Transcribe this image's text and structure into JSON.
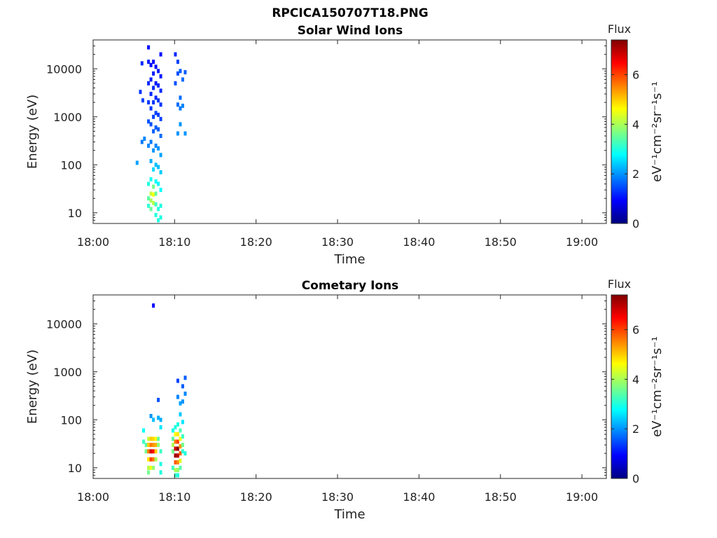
{
  "figure_title": "RPCICA150707T18.PNG",
  "chart_data": [
    {
      "type": "heatmap",
      "title": "Solar Wind Ions",
      "xlabel": "Time",
      "ylabel": "Energy (eV)",
      "y_scale": "log",
      "xlim": [
        "18:00",
        "19:03"
      ],
      "ylim": [
        6,
        40000
      ],
      "xticks": [
        "18:00",
        "18:10",
        "18:20",
        "18:30",
        "18:40",
        "18:50",
        "19:00"
      ],
      "yticks": [
        "10",
        "100",
        "1000",
        "10000"
      ],
      "colorbar": {
        "title": "Flux",
        "label": "eV⁻¹cm⁻²sr⁻¹s⁻¹",
        "range": [
          0,
          7.4
        ],
        "ticks": [
          "0",
          "2",
          "4",
          "6"
        ],
        "colormap": "jet"
      },
      "cells": [
        {
          "t": "18:05.4",
          "e": 110,
          "v": 2.1
        },
        {
          "t": "18:05.8",
          "e": 3300,
          "v": 1.3
        },
        {
          "t": "18:06.1",
          "e": 2200,
          "v": 1.4
        },
        {
          "t": "18:06.0",
          "e": 13000,
          "v": 1.2
        },
        {
          "t": "18:06.0",
          "e": 300,
          "v": 1.8
        },
        {
          "t": "18:06.3",
          "e": 350,
          "v": 1.9
        },
        {
          "t": "18:06.8",
          "e": 28000,
          "v": 1.0
        },
        {
          "t": "18:06.8",
          "e": 14000,
          "v": 1.1
        },
        {
          "t": "18:06.8",
          "e": 5000,
          "v": 1.2
        },
        {
          "t": "18:06.8",
          "e": 2000,
          "v": 1.3
        },
        {
          "t": "18:06.8",
          "e": 800,
          "v": 1.5
        },
        {
          "t": "18:06.8",
          "e": 250,
          "v": 1.9
        },
        {
          "t": "18:06.8",
          "e": 40,
          "v": 3.0
        },
        {
          "t": "18:06.8",
          "e": 20,
          "v": 3.4
        },
        {
          "t": "18:06.8",
          "e": 14,
          "v": 3.1
        },
        {
          "t": "18:07.1",
          "e": 12000,
          "v": 1.0
        },
        {
          "t": "18:07.1",
          "e": 6000,
          "v": 1.1
        },
        {
          "t": "18:07.1",
          "e": 3000,
          "v": 1.2
        },
        {
          "t": "18:07.1",
          "e": 1500,
          "v": 1.3
        },
        {
          "t": "18:07.1",
          "e": 700,
          "v": 1.5
        },
        {
          "t": "18:07.1",
          "e": 300,
          "v": 1.8
        },
        {
          "t": "18:07.1",
          "e": 120,
          "v": 2.2
        },
        {
          "t": "18:07.1",
          "e": 50,
          "v": 2.9
        },
        {
          "t": "18:07.1",
          "e": 25,
          "v": 4.2
        },
        {
          "t": "18:07.1",
          "e": 18,
          "v": 4.0
        },
        {
          "t": "18:07.1",
          "e": 12,
          "v": 3.5
        },
        {
          "t": "18:07.4",
          "e": 14000,
          "v": 1.0
        },
        {
          "t": "18:07.4",
          "e": 8000,
          "v": 1.1
        },
        {
          "t": "18:07.4",
          "e": 4000,
          "v": 1.2
        },
        {
          "t": "18:07.4",
          "e": 2000,
          "v": 1.3
        },
        {
          "t": "18:07.4",
          "e": 1000,
          "v": 1.4
        },
        {
          "t": "18:07.4",
          "e": 500,
          "v": 1.6
        },
        {
          "t": "18:07.4",
          "e": 200,
          "v": 2.0
        },
        {
          "t": "18:07.4",
          "e": 80,
          "v": 2.5
        },
        {
          "t": "18:07.4",
          "e": 35,
          "v": 3.6
        },
        {
          "t": "18:07.4",
          "e": 24,
          "v": 4.6
        },
        {
          "t": "18:07.4",
          "e": 16,
          "v": 4.1
        },
        {
          "t": "18:07.7",
          "e": 11000,
          "v": 1.0
        },
        {
          "t": "18:07.7",
          "e": 5000,
          "v": 1.1
        },
        {
          "t": "18:07.7",
          "e": 2500,
          "v": 1.2
        },
        {
          "t": "18:07.7",
          "e": 1200,
          "v": 1.4
        },
        {
          "t": "18:07.7",
          "e": 600,
          "v": 1.6
        },
        {
          "t": "18:07.7",
          "e": 250,
          "v": 1.9
        },
        {
          "t": "18:07.7",
          "e": 100,
          "v": 2.3
        },
        {
          "t": "18:07.7",
          "e": 45,
          "v": 2.8
        },
        {
          "t": "18:07.7",
          "e": 25,
          "v": 3.5
        },
        {
          "t": "18:07.7",
          "e": 15,
          "v": 3.2
        },
        {
          "t": "18:07.7",
          "e": 9,
          "v": 3.0
        },
        {
          "t": "18:08.0",
          "e": 9000,
          "v": 1.1
        },
        {
          "t": "18:08.0",
          "e": 4500,
          "v": 1.2
        },
        {
          "t": "18:08.0",
          "e": 2200,
          "v": 1.3
        },
        {
          "t": "18:08.0",
          "e": 1100,
          "v": 1.4
        },
        {
          "t": "18:08.0",
          "e": 550,
          "v": 1.6
        },
        {
          "t": "18:08.0",
          "e": 220,
          "v": 2.0
        },
        {
          "t": "18:08.0",
          "e": 90,
          "v": 2.3
        },
        {
          "t": "18:08.0",
          "e": 40,
          "v": 2.7
        },
        {
          "t": "18:08.0",
          "e": 12,
          "v": 3.0
        },
        {
          "t": "18:08.0",
          "e": 7,
          "v": 3.0
        },
        {
          "t": "18:08.3",
          "e": 20000,
          "v": 1.0
        },
        {
          "t": "18:08.3",
          "e": 7000,
          "v": 1.1
        },
        {
          "t": "18:08.3",
          "e": 3500,
          "v": 1.2
        },
        {
          "t": "18:08.3",
          "e": 1800,
          "v": 1.3
        },
        {
          "t": "18:08.3",
          "e": 900,
          "v": 1.4
        },
        {
          "t": "18:08.3",
          "e": 400,
          "v": 1.7
        },
        {
          "t": "18:08.3",
          "e": 160,
          "v": 2.1
        },
        {
          "t": "18:08.3",
          "e": 70,
          "v": 2.4
        },
        {
          "t": "18:08.3",
          "e": 30,
          "v": 2.8
        },
        {
          "t": "18:08.3",
          "e": 14,
          "v": 3.0
        },
        {
          "t": "18:08.3",
          "e": 8,
          "v": 3.0
        },
        {
          "t": "18:10.1",
          "e": 20000,
          "v": 1.2
        },
        {
          "t": "18:10.1",
          "e": 5000,
          "v": 1.5
        },
        {
          "t": "18:10.4",
          "e": 14000,
          "v": 1.4
        },
        {
          "t": "18:10.4",
          "e": 1800,
          "v": 1.7
        },
        {
          "t": "18:10.4",
          "e": 450,
          "v": 2.0
        },
        {
          "t": "18:10.4",
          "e": 8000,
          "v": 1.5
        },
        {
          "t": "18:10.7",
          "e": 9000,
          "v": 1.6
        },
        {
          "t": "18:10.7",
          "e": 1500,
          "v": 1.8
        },
        {
          "t": "18:10.7",
          "e": 700,
          "v": 2.0
        },
        {
          "t": "18:10.7",
          "e": 2500,
          "v": 1.7
        },
        {
          "t": "18:11.0",
          "e": 6000,
          "v": 1.7
        },
        {
          "t": "18:11.0",
          "e": 1700,
          "v": 1.9
        },
        {
          "t": "18:11.3",
          "e": 8500,
          "v": 1.6
        },
        {
          "t": "18:11.3",
          "e": 450,
          "v": 2.0
        }
      ]
    },
    {
      "type": "heatmap",
      "title": "Cometary Ions",
      "xlabel": "Time",
      "ylabel": "Energy (eV)",
      "y_scale": "log",
      "xlim": [
        "18:00",
        "19:03"
      ],
      "ylim": [
        6,
        40000
      ],
      "xticks": [
        "18:00",
        "18:10",
        "18:20",
        "18:30",
        "18:40",
        "18:50",
        "19:00"
      ],
      "yticks": [
        "10",
        "100",
        "1000",
        "10000"
      ],
      "colorbar": {
        "title": "Flux",
        "label": "eV⁻¹cm⁻²sr⁻¹s⁻¹",
        "range": [
          0,
          7.4
        ],
        "ticks": [
          "0",
          "2",
          "4",
          "6"
        ],
        "colormap": "jet"
      },
      "cells": [
        {
          "t": "18:07.4",
          "e": 24000,
          "v": 0.9
        },
        {
          "t": "18:06.2",
          "e": 60,
          "v": 2.8
        },
        {
          "t": "18:06.2",
          "e": 35,
          "v": 3.2
        },
        {
          "t": "18:06.5",
          "e": 30,
          "v": 3.4
        },
        {
          "t": "18:06.5",
          "e": 22,
          "v": 3.6
        },
        {
          "t": "18:06.8",
          "e": 40,
          "v": 4.2
        },
        {
          "t": "18:06.8",
          "e": 30,
          "v": 5.0
        },
        {
          "t": "18:06.8",
          "e": 22,
          "v": 5.6
        },
        {
          "t": "18:06.8",
          "e": 15,
          "v": 4.8
        },
        {
          "t": "18:06.8",
          "e": 10,
          "v": 4.1
        },
        {
          "t": "18:06.8",
          "e": 8,
          "v": 3.6
        },
        {
          "t": "18:07.1",
          "e": 120,
          "v": 2.0
        },
        {
          "t": "18:07.1",
          "e": 40,
          "v": 5.0
        },
        {
          "t": "18:07.1",
          "e": 30,
          "v": 5.6
        },
        {
          "t": "18:07.1",
          "e": 22,
          "v": 6.8
        },
        {
          "t": "18:07.1",
          "e": 15,
          "v": 6.0
        },
        {
          "t": "18:07.1",
          "e": 10,
          "v": 4.5
        },
        {
          "t": "18:07.4",
          "e": 100,
          "v": 2.3
        },
        {
          "t": "18:07.4",
          "e": 40,
          "v": 4.9
        },
        {
          "t": "18:07.4",
          "e": 30,
          "v": 5.4
        },
        {
          "t": "18:07.4",
          "e": 22,
          "v": 6.4
        },
        {
          "t": "18:07.4",
          "e": 15,
          "v": 5.6
        },
        {
          "t": "18:07.4",
          "e": 10,
          "v": 3.8
        },
        {
          "t": "18:07.7",
          "e": 40,
          "v": 4.6
        },
        {
          "t": "18:07.7",
          "e": 30,
          "v": 5.2
        },
        {
          "t": "18:07.7",
          "e": 22,
          "v": 5.0
        },
        {
          "t": "18:07.7",
          "e": 15,
          "v": 4.0
        },
        {
          "t": "18:08.0",
          "e": 260,
          "v": 1.5
        },
        {
          "t": "18:08.0",
          "e": 110,
          "v": 2.2
        },
        {
          "t": "18:08.0",
          "e": 40,
          "v": 3.5
        },
        {
          "t": "18:08.0",
          "e": 30,
          "v": 3.8
        },
        {
          "t": "18:08.3",
          "e": 70,
          "v": 2.6
        },
        {
          "t": "18:08.3",
          "e": 22,
          "v": 3.2
        },
        {
          "t": "18:08.3",
          "e": 8,
          "v": 3.0
        },
        {
          "t": "18:08.3",
          "e": 12,
          "v": 3.0
        },
        {
          "t": "18:08.3",
          "e": 100,
          "v": 2.2
        },
        {
          "t": "18:09.8",
          "e": 60,
          "v": 2.9
        },
        {
          "t": "18:09.8",
          "e": 40,
          "v": 3.4
        },
        {
          "t": "18:09.8",
          "e": 30,
          "v": 4.0
        },
        {
          "t": "18:09.8",
          "e": 22,
          "v": 3.6
        },
        {
          "t": "18:09.8",
          "e": 10,
          "v": 3.2
        },
        {
          "t": "18:10.1",
          "e": 70,
          "v": 3.0
        },
        {
          "t": "18:10.1",
          "e": 50,
          "v": 4.6
        },
        {
          "t": "18:10.1",
          "e": 35,
          "v": 5.6
        },
        {
          "t": "18:10.1",
          "e": 25,
          "v": 6.8
        },
        {
          "t": "18:10.1",
          "e": 18,
          "v": 7.2
        },
        {
          "t": "18:10.1",
          "e": 13,
          "v": 5.8
        },
        {
          "t": "18:10.1",
          "e": 9,
          "v": 4.0
        },
        {
          "t": "18:10.1",
          "e": 7,
          "v": 3.2
        },
        {
          "t": "18:10.4",
          "e": 650,
          "v": 1.4
        },
        {
          "t": "18:10.4",
          "e": 300,
          "v": 1.9
        },
        {
          "t": "18:10.4",
          "e": 80,
          "v": 3.0
        },
        {
          "t": "18:10.4",
          "e": 50,
          "v": 4.8
        },
        {
          "t": "18:10.4",
          "e": 35,
          "v": 6.0
        },
        {
          "t": "18:10.4",
          "e": 25,
          "v": 7.3
        },
        {
          "t": "18:10.4",
          "e": 18,
          "v": 7.0
        },
        {
          "t": "18:10.4",
          "e": 13,
          "v": 5.5
        },
        {
          "t": "18:10.4",
          "e": 9,
          "v": 3.9
        },
        {
          "t": "18:10.4",
          "e": 7,
          "v": 3.0
        },
        {
          "t": "18:10.7",
          "e": 220,
          "v": 2.1
        },
        {
          "t": "18:10.7",
          "e": 130,
          "v": 2.4
        },
        {
          "t": "18:10.7",
          "e": 60,
          "v": 3.3
        },
        {
          "t": "18:10.7",
          "e": 40,
          "v": 4.6
        },
        {
          "t": "18:10.7",
          "e": 28,
          "v": 5.4
        },
        {
          "t": "18:10.7",
          "e": 20,
          "v": 5.8
        },
        {
          "t": "18:10.7",
          "e": 14,
          "v": 4.4
        },
        {
          "t": "18:10.7",
          "e": 10,
          "v": 3.4
        },
        {
          "t": "18:11.0",
          "e": 500,
          "v": 1.6
        },
        {
          "t": "18:11.0",
          "e": 240,
          "v": 2.0
        },
        {
          "t": "18:11.0",
          "e": 90,
          "v": 2.6
        },
        {
          "t": "18:11.0",
          "e": 45,
          "v": 3.2
        },
        {
          "t": "18:11.0",
          "e": 30,
          "v": 3.6
        },
        {
          "t": "18:11.0",
          "e": 22,
          "v": 3.1
        },
        {
          "t": "18:11.3",
          "e": 750,
          "v": 1.6
        },
        {
          "t": "18:11.3",
          "e": 350,
          "v": 1.9
        },
        {
          "t": "18:11.3",
          "e": 20,
          "v": 3.0
        }
      ]
    }
  ]
}
